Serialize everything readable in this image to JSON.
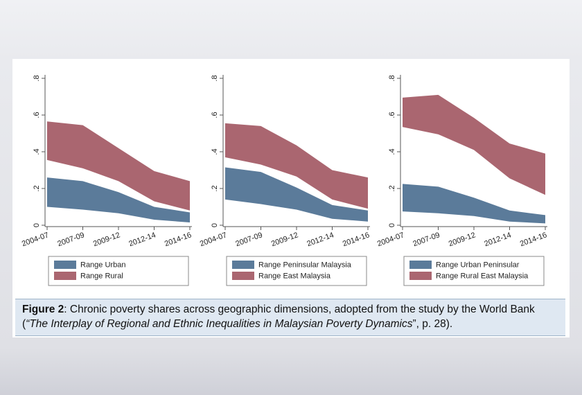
{
  "chart_data": [
    {
      "type": "range-area",
      "categories": [
        "2004-07",
        "2007-09",
        "2009-12",
        "2012-14",
        "2014-16"
      ],
      "ylim": [
        0,
        0.8
      ],
      "yticks": [
        0,
        {
          "value": 0.2,
          "label": ".2"
        },
        {
          "value": 0.4,
          "label": ".4"
        },
        {
          "value": 0.6,
          "label": ".6"
        },
        {
          "value": 0.8,
          "label": ".8"
        }
      ],
      "series": [
        {
          "name": "Range Urban",
          "color": "#5b7b9a",
          "high": [
            0.26,
            0.24,
            0.18,
            0.1,
            0.07
          ],
          "low": [
            0.1,
            0.085,
            0.065,
            0.03,
            0.015
          ]
        },
        {
          "name": "Range Rural",
          "color": "#aa6670",
          "high": [
            0.565,
            0.545,
            0.42,
            0.295,
            0.24
          ],
          "low": [
            0.355,
            0.31,
            0.24,
            0.13,
            0.08
          ]
        }
      ]
    },
    {
      "type": "range-area",
      "categories": [
        "2004-07",
        "2007-09",
        "2009-12",
        "2012-14",
        "2014-16"
      ],
      "ylim": [
        0,
        0.8
      ],
      "yticks": [
        0,
        {
          "value": 0.2,
          "label": ".2"
        },
        {
          "value": 0.4,
          "label": ".4"
        },
        {
          "value": 0.6,
          "label": ".6"
        },
        {
          "value": 0.8,
          "label": ".8"
        }
      ],
      "series": [
        {
          "name": "Range Peninsular Malaysia",
          "color": "#5b7b9a",
          "high": [
            0.315,
            0.29,
            0.205,
            0.11,
            0.08
          ],
          "low": [
            0.14,
            0.115,
            0.085,
            0.035,
            0.02
          ]
        },
        {
          "name": "Range East Malaysia",
          "color": "#aa6670",
          "high": [
            0.555,
            0.54,
            0.435,
            0.3,
            0.26
          ],
          "low": [
            0.37,
            0.33,
            0.265,
            0.14,
            0.09
          ]
        }
      ]
    },
    {
      "type": "range-area",
      "categories": [
        "2004-07",
        "2007-09",
        "2009-12",
        "2012-14",
        "2014-16"
      ],
      "ylim": [
        0,
        0.8
      ],
      "yticks": [
        0,
        {
          "value": 0.2,
          "label": ".2"
        },
        {
          "value": 0.4,
          "label": ".4"
        },
        {
          "value": 0.6,
          "label": ".6"
        },
        {
          "value": 0.8,
          "label": ".8"
        }
      ],
      "series": [
        {
          "name": "Range Urban Peninsular",
          "color": "#5b7b9a",
          "high": [
            0.225,
            0.21,
            0.15,
            0.08,
            0.055
          ],
          "low": [
            0.075,
            0.065,
            0.05,
            0.02,
            0.01
          ]
        },
        {
          "name": "Range Rural East Malaysia",
          "color": "#aa6670",
          "high": [
            0.695,
            0.71,
            0.585,
            0.445,
            0.39
          ],
          "low": [
            0.535,
            0.495,
            0.41,
            0.255,
            0.165
          ]
        }
      ]
    }
  ],
  "caption": {
    "label": "Figure 2",
    "text_before": ": Chronic poverty shares across geographic dimensions, adopted from the study by the World Bank (",
    "title": "“The Interplay of Regional and Ethnic Inequalities in Malaysian Poverty Dynamics",
    "text_after": "”, p. 28)."
  }
}
